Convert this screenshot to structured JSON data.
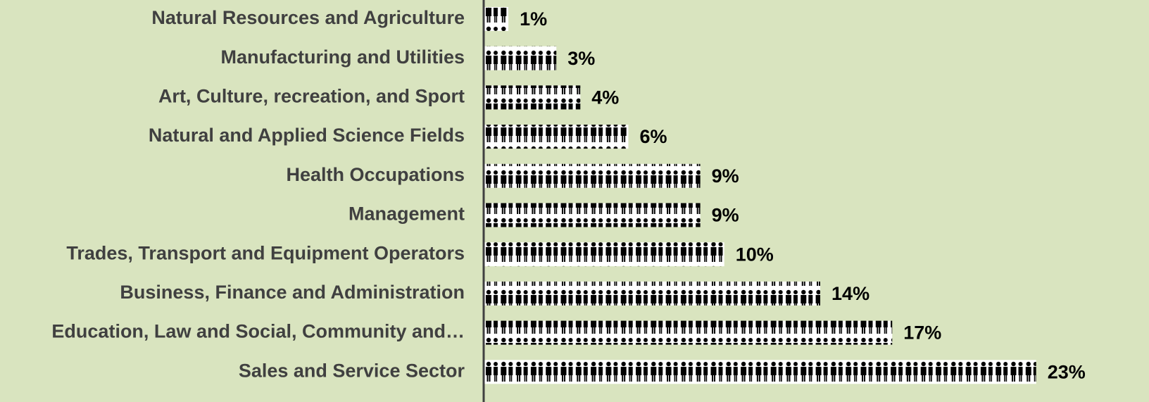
{
  "chart_data": {
    "type": "pictograph",
    "categories": [
      "Natural Resources and Agriculture",
      "Manufacturing and Utilities",
      "Art, Culture, recreation, and Sport",
      "Natural and Applied Science Fields",
      "Health Occupations",
      "Management",
      "Trades, Transport and Equipment Operators",
      "Business, Finance and Administration",
      "Education, Law and Social, Community and…",
      "Sales and Service Sector"
    ],
    "values": [
      1,
      3,
      4,
      6,
      9,
      9,
      10,
      14,
      17,
      23
    ],
    "value_labels": [
      "1%",
      "3%",
      "4%",
      "6%",
      "9%",
      "9%",
      "10%",
      "14%",
      "17%",
      "23%"
    ],
    "xlim": [
      0,
      27
    ]
  }
}
